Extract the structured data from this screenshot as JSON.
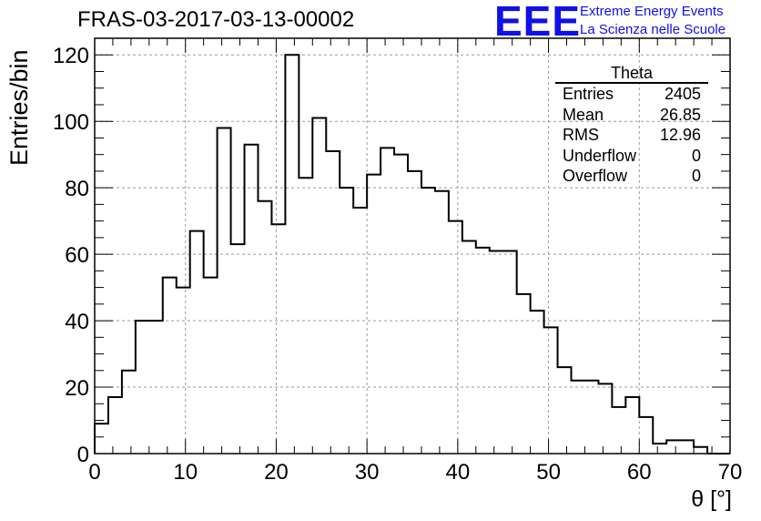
{
  "title": "FRAS-03-2017-03-13-00002",
  "logo": {
    "text": "EEE",
    "line1": "Extreme Energy Events",
    "line2": "La Scienza nelle Scuole"
  },
  "stats": {
    "title": "Theta",
    "rows": [
      {
        "label": "Entries",
        "value": "2405"
      },
      {
        "label": "Mean",
        "value": "26.85"
      },
      {
        "label": "RMS",
        "value": "12.96"
      },
      {
        "label": "Underflow",
        "value": "0"
      },
      {
        "label": "Overflow",
        "value": "0"
      }
    ]
  },
  "chart_data": {
    "type": "bar",
    "style": "step-histogram",
    "title": "FRAS-03-2017-03-13-00002",
    "xlabel": "θ [°]",
    "ylabel": "Entries/bin",
    "xlim": [
      0,
      70
    ],
    "ylim": [
      0,
      125
    ],
    "xticks": [
      0,
      10,
      20,
      30,
      40,
      50,
      60,
      70
    ],
    "yticks": [
      0,
      20,
      40,
      60,
      80,
      100,
      120
    ],
    "grid": true,
    "bin_width": 1.5,
    "bin_edges_start": 0,
    "values": [
      9,
      17,
      25,
      40,
      40,
      53,
      50,
      67,
      53,
      98,
      63,
      93,
      76,
      69,
      120,
      83,
      101,
      91,
      80,
      74,
      84,
      92,
      90,
      85,
      80,
      79,
      70,
      64,
      62,
      61,
      61,
      48,
      43,
      38,
      26,
      22,
      22,
      21,
      14,
      17,
      11,
      3,
      4,
      4,
      2,
      0,
      0
    ]
  }
}
